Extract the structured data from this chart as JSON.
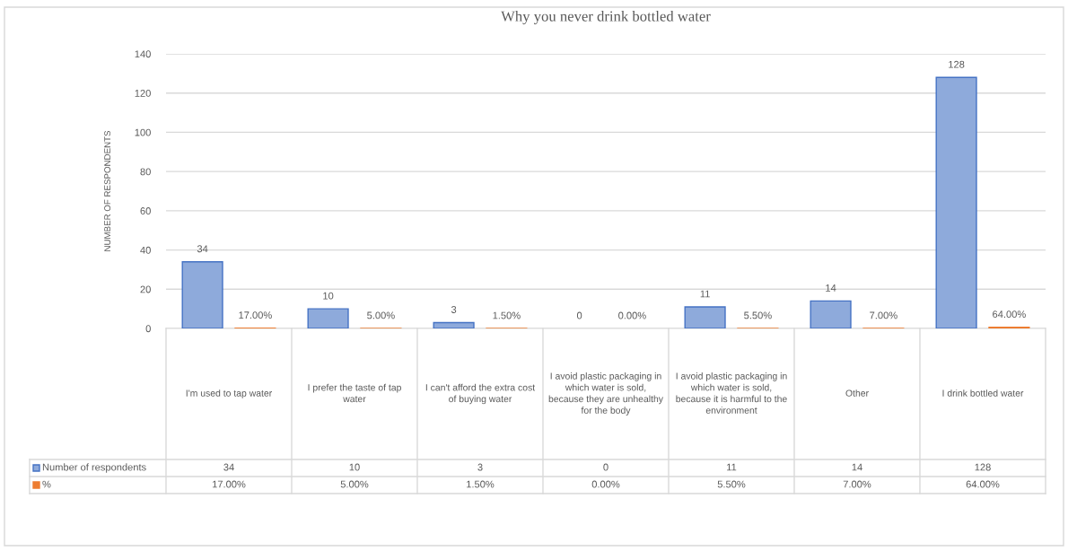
{
  "chart_data": {
    "type": "bar",
    "title": "Why you never drink bottled water",
    "ylabel": "NUMBER OF RESPONDENTS",
    "categories": [
      "I'm used to tap water",
      "I prefer the taste of tap water",
      "I can't afford the extra cost of buying water",
      "I avoid plastic packaging in which water is sold, because they are unhealthy for the body",
      "I avoid plastic packaging in which water is sold, because it is harmful to the environment",
      "Other",
      "I drink bottled water"
    ],
    "series": [
      {
        "name": "Number of respondents",
        "color": "#8eaadb",
        "values": [
          34,
          10,
          3,
          0,
          11,
          14,
          128
        ],
        "value_labels": [
          "34",
          "10",
          "3",
          "0",
          "11",
          "14",
          "128"
        ]
      },
      {
        "name": "%",
        "color": "#ed7d31",
        "values": [
          0.17,
          0.05,
          0.015,
          0,
          0.055,
          0.07,
          0.64
        ],
        "value_labels": [
          "17.00%",
          "5.00%",
          "1.50%",
          "0.00%",
          "5.50%",
          "7.00%",
          "64.00%"
        ]
      }
    ],
    "ylim": [
      0,
      140
    ],
    "yticks": [
      0,
      20,
      40,
      60,
      80,
      100,
      120,
      140
    ],
    "grid": "y",
    "legend": "bottom"
  }
}
